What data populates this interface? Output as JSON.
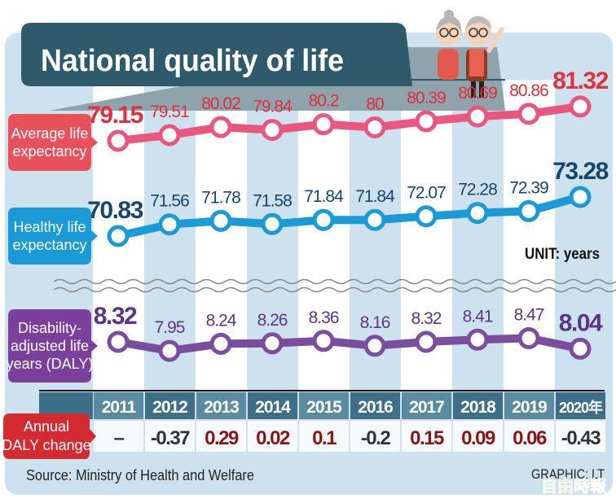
{
  "title": "National quality of life",
  "unit_label": "UNIT: years",
  "source": "Source: Ministry of Health and Welfare",
  "credit": "GRAPHIC: LT",
  "logo_text": "自由時報",
  "colors": {
    "background": "#cde2ee",
    "title_bar": "#2f5a6b",
    "average": "#e9577e",
    "average_label": "#e1303c",
    "healthy": "#1a9ad6",
    "healthy_label": "#16466b",
    "daly": "#7b4d9f",
    "daly_label": "#5b3486",
    "positive_change": "#8b1515",
    "negative_change": "#333333",
    "table_header": "#3e6f86"
  },
  "chart_data": {
    "type": "line",
    "categories": [
      "2011",
      "2012",
      "2013",
      "2014",
      "2015",
      "2016",
      "2017",
      "2018",
      "2019",
      "2020年"
    ],
    "series": [
      {
        "name": "Average life expectancy",
        "values": [
          79.15,
          79.51,
          80.02,
          79.84,
          80.2,
          80,
          80.39,
          80.69,
          80.86,
          81.32
        ]
      },
      {
        "name": "Healthy life expectancy",
        "values": [
          70.83,
          71.56,
          71.78,
          71.58,
          71.84,
          71.84,
          72.07,
          72.28,
          72.39,
          73.28
        ]
      },
      {
        "name": "Disability-adjusted life years (DALY)",
        "values": [
          8.32,
          7.95,
          8.24,
          8.26,
          8.36,
          8.16,
          8.32,
          8.41,
          8.47,
          8.04
        ]
      }
    ],
    "series_labels": [
      [
        "Average life",
        "expectancy"
      ],
      [
        "Healthy life",
        "expectancy"
      ],
      [
        "Disability-",
        "adjusted life",
        "years (DALY)"
      ]
    ],
    "table": {
      "row_label": [
        "Annual",
        "DALY change"
      ],
      "values": [
        "–",
        "-0.37",
        "0.29",
        "0.02",
        "0.1",
        "-0.2",
        "0.15",
        "0.09",
        "0.06",
        "-0.43"
      ]
    },
    "axis_break": true,
    "grid": false
  }
}
